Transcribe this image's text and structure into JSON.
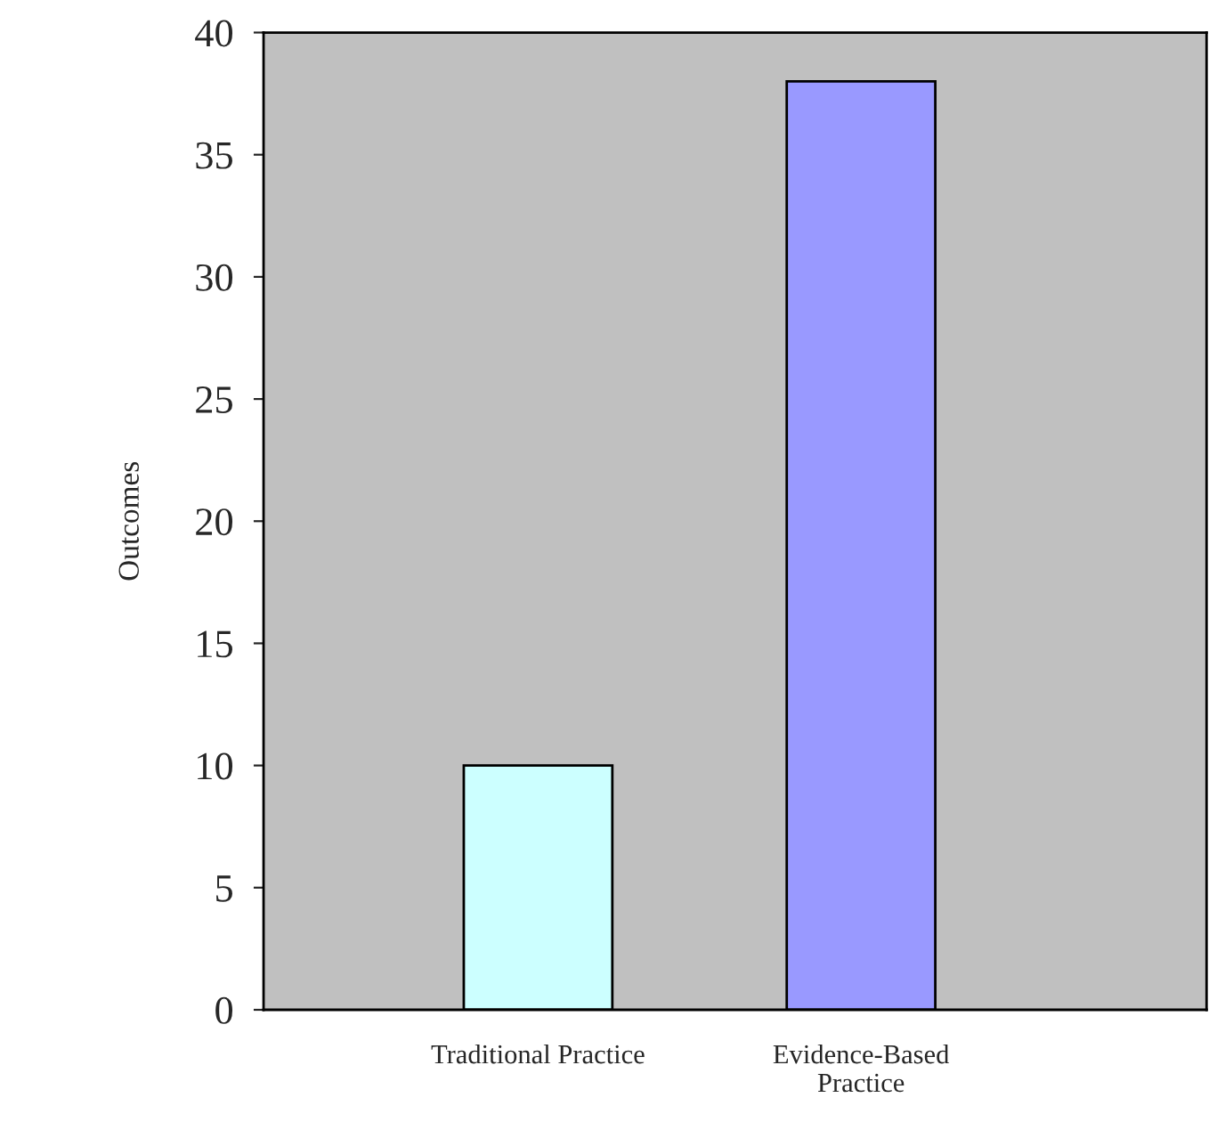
{
  "chart_data": {
    "type": "bar",
    "ylabel": "Outcomes",
    "categories": [
      "Traditional Practice",
      "Evidence-Based\nPractice"
    ],
    "values": [
      10,
      38
    ],
    "colors": [
      "#ccffff",
      "#9999ff"
    ],
    "ylim": [
      0,
      40
    ],
    "yticks": [
      0,
      5,
      10,
      15,
      20,
      25,
      30,
      35,
      40
    ],
    "grid": false
  }
}
